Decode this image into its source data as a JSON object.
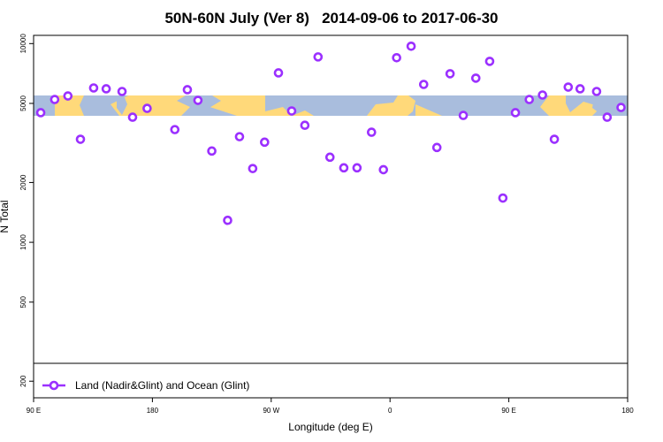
{
  "chart_data": {
    "type": "scatter",
    "title": "50N-60N July (Ver 8)   2014-09-06 to 2017-06-30",
    "x_label": "Longitude (deg E)",
    "y_label": "N Total",
    "ylog": true,
    "grid": false,
    "legend": "bottom-left",
    "xlim": [
      90,
      540
    ],
    "xticks": [
      {
        "value": 90,
        "label": "90 E"
      },
      180,
      {
        "value": 270,
        "label": "90 W"
      },
      {
        "value": 360,
        "label": "0"
      },
      {
        "value": 450,
        "label": "90 E"
      },
      {
        "value": 540,
        "label": "180"
      }
    ],
    "ylim": [
      165,
      11000
    ],
    "yticks": [
      200,
      500,
      1000,
      2000,
      5000,
      10000
    ],
    "x": [
      95.4,
      106,
      116,
      125.5,
      135.5,
      145,
      157,
      165,
      176,
      197,
      206.5,
      214.5,
      225,
      237,
      246,
      256,
      265,
      275.5,
      285.5,
      295.5,
      305.5,
      314.5,
      325,
      335,
      346,
      355,
      365,
      376,
      385.5,
      395.5,
      405.5,
      415.5,
      425,
      435.5,
      445.5,
      455,
      465.5,
      475.5,
      484.5,
      495,
      504,
      516.5,
      524.5,
      535
    ],
    "series": [
      {
        "name": "Land (Nadir&Glint) and Ocean (Glint)",
        "color": "#9b30ff",
        "values": [
          4490,
          5230,
          5450,
          3300,
          5980,
          5920,
          5740,
          4260,
          4720,
          3690,
          5860,
          5180,
          2880,
          1290,
          3400,
          2350,
          3190,
          7120,
          4580,
          3880,
          8570,
          2680,
          2370,
          2370,
          3580,
          2320,
          8490,
          9700,
          6230,
          3000,
          7050,
          4350,
          6700,
          8140,
          1670,
          4490,
          5230,
          5510,
          3300,
          6040,
          5920,
          5740,
          4260,
          4770
        ]
      }
    ]
  }
}
